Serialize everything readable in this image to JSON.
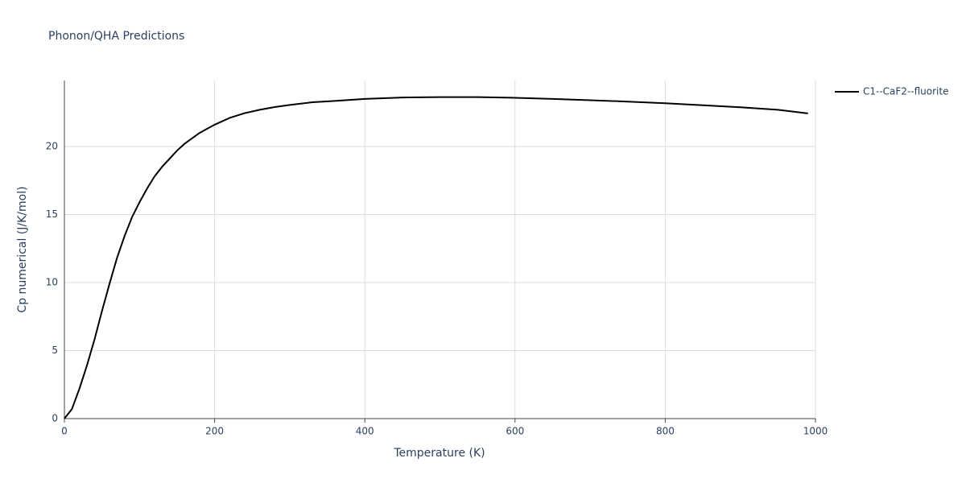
{
  "chart_data": {
    "type": "line",
    "title": "Phonon/QHA Predictions",
    "x_label": "Temperature (K)",
    "y_label": "Cp numerical (J/K/mol)",
    "x": [
      0,
      10,
      20,
      30,
      40,
      50,
      60,
      70,
      80,
      90,
      100,
      110,
      120,
      130,
      140,
      150,
      160,
      170,
      180,
      190,
      200,
      220,
      240,
      260,
      280,
      300,
      330,
      360,
      400,
      450,
      500,
      550,
      600,
      650,
      700,
      750,
      800,
      850,
      900,
      950,
      990
    ],
    "series": [
      {
        "name": "C1--CaF2--fluorite",
        "color": "#000000",
        "values": [
          0,
          0.7,
          2.2,
          3.9,
          5.8,
          7.9,
          9.9,
          11.8,
          13.4,
          14.8,
          15.9,
          16.9,
          17.8,
          18.5,
          19.1,
          19.7,
          20.2,
          20.6,
          21.0,
          21.3,
          21.6,
          22.1,
          22.45,
          22.7,
          22.9,
          23.05,
          23.25,
          23.35,
          23.5,
          23.6,
          23.63,
          23.63,
          23.58,
          23.5,
          23.4,
          23.3,
          23.18,
          23.03,
          22.88,
          22.7,
          22.43
        ]
      }
    ],
    "xlim": [
      0,
      1000
    ],
    "xticks": [
      0,
      200,
      400,
      600,
      800,
      1000
    ],
    "ylim": [
      0,
      24.85
    ],
    "yticks": [
      0,
      5,
      10,
      15,
      20
    ],
    "grid": true,
    "legend": "right"
  }
}
